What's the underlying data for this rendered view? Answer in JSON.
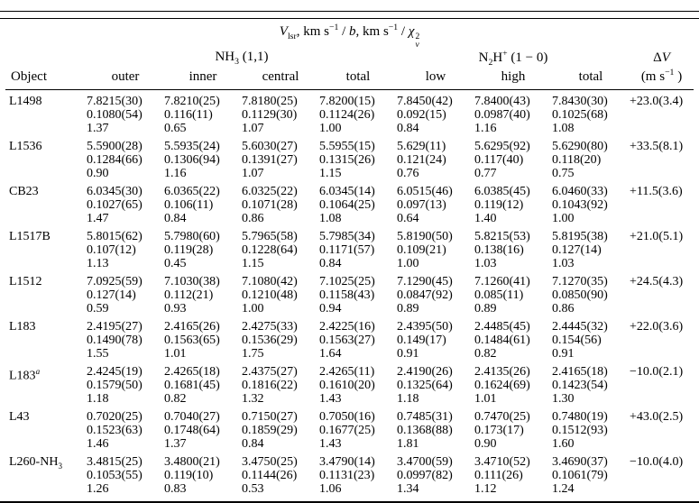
{
  "table": {
    "title": {
      "v_italic": "V",
      "v_sub": "lsr",
      "units1": ", km s",
      "sup1": "−1",
      "slash1": " / ",
      "b_italic": "b",
      "units2": ", km s",
      "sup2": "−1",
      "slash2": " / ",
      "chi": "χ",
      "chi_sup": "2",
      "chi_sub": "ν"
    },
    "groups": {
      "nh3": {
        "pre": "NH",
        "sub": "3",
        "post": " (1,1)"
      },
      "n2h": {
        "pre": "N",
        "sub": "2",
        "mid": "H",
        "sup": "+",
        "post": " (1 − 0)"
      },
      "dv": {
        "delta": "Δ",
        "v": "V"
      }
    },
    "columns": {
      "object": "Object",
      "outer": "outer",
      "inner": "inner",
      "central": "central",
      "total_nh3": "total",
      "low": "low",
      "high": "high",
      "total_n2h": "total",
      "dv_unit_pre": "(m s",
      "dv_unit_sup": "−1",
      "dv_unit_post": " )"
    },
    "rows": [
      {
        "object": {
          "label": "L1498"
        },
        "cells": [
          [
            "7.8215(30)",
            "0.1080(54)",
            "1.37"
          ],
          [
            "7.8210(25)",
            "0.116(11)",
            "0.65"
          ],
          [
            "7.8180(25)",
            "0.1129(30)",
            "1.07"
          ],
          [
            "7.8200(15)",
            "0.1124(26)",
            "1.00"
          ],
          [
            "7.8450(42)",
            "0.092(15)",
            "0.84"
          ],
          [
            "7.8400(43)",
            "0.0987(40)",
            "1.16"
          ],
          [
            "7.8430(30)",
            "0.1025(68)",
            "1.08"
          ]
        ],
        "dv": "+23.0(3.4)"
      },
      {
        "object": {
          "label": "L1536"
        },
        "cells": [
          [
            "5.5900(28)",
            "0.1284(66)",
            "0.90"
          ],
          [
            "5.5935(24)",
            "0.1306(94)",
            "1.16"
          ],
          [
            "5.6030(27)",
            "0.1391(27)",
            "1.07"
          ],
          [
            "5.5955(15)",
            "0.1315(26)",
            "1.15"
          ],
          [
            "5.629(11)",
            "0.121(24)",
            "0.76"
          ],
          [
            "5.6295(92)",
            "0.117(40)",
            "0.77"
          ],
          [
            "5.6290(80)",
            "0.118(20)",
            "0.75"
          ]
        ],
        "dv": "+33.5(8.1)"
      },
      {
        "object": {
          "label": "CB23"
        },
        "cells": [
          [
            "6.0345(30)",
            "0.1027(65)",
            "1.47"
          ],
          [
            "6.0365(22)",
            "0.106(11)",
            "0.84"
          ],
          [
            "6.0325(22)",
            "0.1071(28)",
            "0.86"
          ],
          [
            "6.0345(14)",
            "0.1064(25)",
            "1.08"
          ],
          [
            "6.0515(46)",
            "0.097(13)",
            "0.64"
          ],
          [
            "6.0385(45)",
            "0.119(12)",
            "1.40"
          ],
          [
            "6.0460(33)",
            "0.1043(92)",
            "1.00"
          ]
        ],
        "dv": "+11.5(3.6)"
      },
      {
        "object": {
          "label": "L1517B"
        },
        "cells": [
          [
            "5.8015(62)",
            "0.107(12)",
            "1.13"
          ],
          [
            "5.7980(60)",
            "0.119(28)",
            "0.45"
          ],
          [
            "5.7965(58)",
            "0.1228(64)",
            "1.15"
          ],
          [
            "5.7985(34)",
            "0.1171(57)",
            "0.84"
          ],
          [
            "5.8190(50)",
            "0.109(21)",
            "1.00"
          ],
          [
            "5.8215(53)",
            "0.138(16)",
            "1.03"
          ],
          [
            "5.8195(38)",
            "0.127(14)",
            "1.03"
          ]
        ],
        "dv": "+21.0(5.1)"
      },
      {
        "object": {
          "label": "L1512"
        },
        "cells": [
          [
            "7.0925(59)",
            "0.127(14)",
            "0.59"
          ],
          [
            "7.1030(38)",
            "0.112(21)",
            "0.93"
          ],
          [
            "7.1080(42)",
            "0.1210(48)",
            "1.00"
          ],
          [
            "7.1025(25)",
            "0.1158(43)",
            "0.94"
          ],
          [
            "7.1290(45)",
            "0.0847(92)",
            "0.89"
          ],
          [
            "7.1260(41)",
            "0.085(11)",
            "0.89"
          ],
          [
            "7.1270(35)",
            "0.0850(90)",
            "0.86"
          ]
        ],
        "dv": "+24.5(4.3)"
      },
      {
        "object": {
          "label": "L183"
        },
        "cells": [
          [
            "2.4195(27)",
            "0.1490(78)",
            "1.55"
          ],
          [
            "2.4165(26)",
            "0.1563(65)",
            "1.01"
          ],
          [
            "2.4275(33)",
            "0.1536(29)",
            "1.75"
          ],
          [
            "2.4225(16)",
            "0.1563(27)",
            "1.64"
          ],
          [
            "2.4395(50)",
            "0.149(17)",
            "0.91"
          ],
          [
            "2.4485(45)",
            "0.1484(61)",
            "0.82"
          ],
          [
            "2.4445(32)",
            "0.154(56)",
            "0.91"
          ]
        ],
        "dv": "+22.0(3.6)"
      },
      {
        "object": {
          "label": "L183",
          "sup": "a"
        },
        "cells": [
          [
            "2.4245(19)",
            "0.1579(50)",
            "1.18"
          ],
          [
            "2.4265(18)",
            "0.1681(45)",
            "0.82"
          ],
          [
            "2.4375(27)",
            "0.1816(22)",
            "1.32"
          ],
          [
            "2.4265(11)",
            "0.1610(20)",
            "1.43"
          ],
          [
            "2.4190(26)",
            "0.1325(64)",
            "1.18"
          ],
          [
            "2.4135(26)",
            "0.1624(69)",
            "1.01"
          ],
          [
            "2.4165(18)",
            "0.1423(54)",
            "1.30"
          ]
        ],
        "dv": "−10.0(2.1)"
      },
      {
        "object": {
          "label": "L43"
        },
        "cells": [
          [
            "0.7020(25)",
            "0.1523(63)",
            "1.46"
          ],
          [
            "0.7040(27)",
            "0.1748(64)",
            "1.37"
          ],
          [
            "0.7150(27)",
            "0.1859(29)",
            "0.84"
          ],
          [
            "0.7050(16)",
            "0.1677(25)",
            "1.43"
          ],
          [
            "0.7485(31)",
            "0.1368(88)",
            "1.81"
          ],
          [
            "0.7470(25)",
            "0.173(17)",
            "0.90"
          ],
          [
            "0.7480(19)",
            "0.1512(93)",
            "1.60"
          ]
        ],
        "dv": "+43.0(2.5)"
      },
      {
        "object": {
          "label": "L260-NH",
          "sub": "3"
        },
        "cells": [
          [
            "3.4815(25)",
            "0.1053(55)",
            "1.26"
          ],
          [
            "3.4800(21)",
            "0.119(10)",
            "0.83"
          ],
          [
            "3.4750(25)",
            "0.1144(26)",
            "0.53"
          ],
          [
            "3.4790(14)",
            "0.1131(23)",
            "1.06"
          ],
          [
            "3.4700(59)",
            "0.0997(82)",
            "1.34"
          ],
          [
            "3.4710(52)",
            "0.111(26)",
            "1.12"
          ],
          [
            "3.4690(37)",
            "0.1061(79)",
            "1.24"
          ]
        ],
        "dv": "−10.0(4.0)"
      }
    ]
  }
}
